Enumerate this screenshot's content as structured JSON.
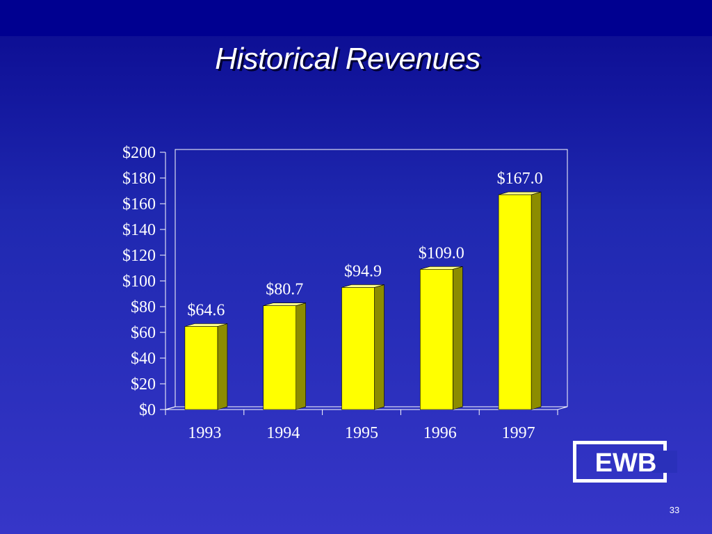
{
  "slide": {
    "title": "Historical Revenues",
    "page_number": "33",
    "logo_text": "EWB"
  },
  "colors": {
    "background_top": "#0a0a8f",
    "background_bottom": "#3636c8",
    "bar_front": "#ffff00",
    "bar_side": "#8c8c00",
    "text": "#ffffff"
  },
  "chart_data": {
    "type": "bar",
    "categories": [
      "1993",
      "1994",
      "1995",
      "1996",
      "1997"
    ],
    "values": [
      64.6,
      80.7,
      94.9,
      109.0,
      167.0
    ],
    "data_labels": [
      "$64.6",
      "$80.7",
      "$94.9",
      "$109.0",
      "$167.0"
    ],
    "ylim": [
      0,
      200
    ],
    "yticks": [
      0,
      20,
      40,
      60,
      80,
      100,
      120,
      140,
      160,
      180,
      200
    ],
    "ytick_labels": [
      "$0",
      "$20",
      "$40",
      "$60",
      "$80",
      "$100",
      "$120",
      "$140",
      "$160",
      "$180",
      "$200"
    ],
    "title": "",
    "xlabel": "",
    "ylabel": "",
    "grid": false,
    "bar_style": "3d"
  }
}
